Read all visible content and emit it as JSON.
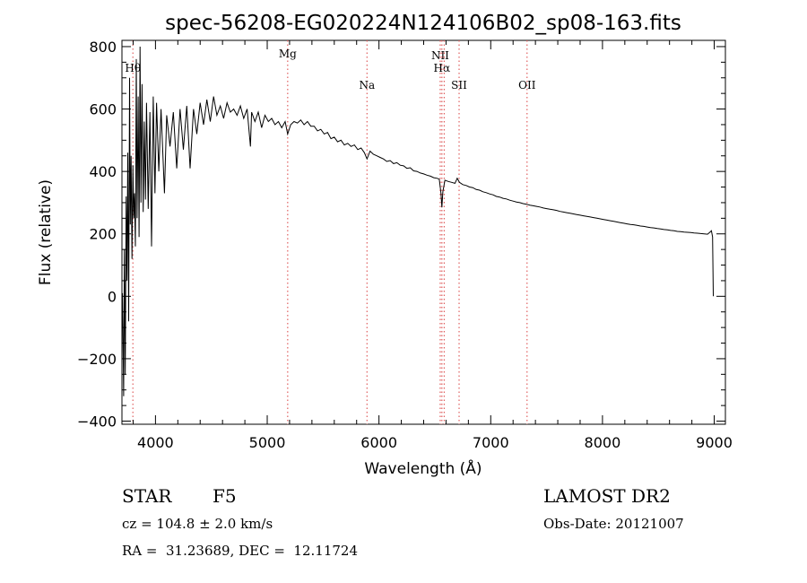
{
  "chart_data": {
    "type": "line",
    "title": "spec-56208-EG020224N124106B02_sp08-163.fits",
    "xlabel": "Wavelength (Å)",
    "ylabel": "Flux (relative)",
    "xlim": [
      3700,
      9100
    ],
    "ylim": [
      -410,
      820
    ],
    "x_ticks": [
      4000,
      5000,
      6000,
      7000,
      8000,
      9000
    ],
    "y_ticks": [
      -400,
      -200,
      0,
      200,
      400,
      600,
      800
    ],
    "grid": false,
    "series": [
      {
        "points": [
          [
            3705,
            10
          ],
          [
            3715,
            -320
          ],
          [
            3722,
            150
          ],
          [
            3730,
            -250
          ],
          [
            3738,
            320
          ],
          [
            3745,
            50
          ],
          [
            3752,
            460
          ],
          [
            3760,
            -80
          ],
          [
            3768,
            700
          ],
          [
            3775,
            230
          ],
          [
            3782,
            450
          ],
          [
            3790,
            120
          ],
          [
            3798,
            420
          ],
          [
            3805,
            250
          ],
          [
            3812,
            330
          ],
          [
            3820,
            160
          ],
          [
            3828,
            760
          ],
          [
            3836,
            250
          ],
          [
            3845,
            640
          ],
          [
            3853,
            190
          ],
          [
            3862,
            800
          ],
          [
            3870,
            300
          ],
          [
            3880,
            680
          ],
          [
            3890,
            270
          ],
          [
            3900,
            560
          ],
          [
            3910,
            310
          ],
          [
            3920,
            620
          ],
          [
            3935,
            280
          ],
          [
            3950,
            590
          ],
          [
            3965,
            160
          ],
          [
            3980,
            640
          ],
          [
            3995,
            330
          ],
          [
            4010,
            620
          ],
          [
            4030,
            400
          ],
          [
            4050,
            600
          ],
          [
            4080,
            330
          ],
          [
            4100,
            580
          ],
          [
            4130,
            480
          ],
          [
            4160,
            590
          ],
          [
            4190,
            410
          ],
          [
            4220,
            600
          ],
          [
            4250,
            470
          ],
          [
            4280,
            610
          ],
          [
            4310,
            410
          ],
          [
            4340,
            600
          ],
          [
            4370,
            520
          ],
          [
            4400,
            620
          ],
          [
            4430,
            550
          ],
          [
            4460,
            630
          ],
          [
            4490,
            560
          ],
          [
            4520,
            640
          ],
          [
            4550,
            580
          ],
          [
            4580,
            610
          ],
          [
            4610,
            570
          ],
          [
            4640,
            620
          ],
          [
            4670,
            590
          ],
          [
            4700,
            600
          ],
          [
            4730,
            580
          ],
          [
            4760,
            610
          ],
          [
            4790,
            570
          ],
          [
            4820,
            600
          ],
          [
            4850,
            480
          ],
          [
            4860,
            590
          ],
          [
            4890,
            560
          ],
          [
            4920,
            590
          ],
          [
            4950,
            540
          ],
          [
            4980,
            580
          ],
          [
            5010,
            560
          ],
          [
            5040,
            570
          ],
          [
            5070,
            550
          ],
          [
            5100,
            560
          ],
          [
            5130,
            540
          ],
          [
            5160,
            560
          ],
          [
            5183,
            520
          ],
          [
            5210,
            550
          ],
          [
            5240,
            560
          ],
          [
            5270,
            555
          ],
          [
            5300,
            565
          ],
          [
            5330,
            550
          ],
          [
            5360,
            560
          ],
          [
            5390,
            545
          ],
          [
            5420,
            545
          ],
          [
            5450,
            530
          ],
          [
            5480,
            535
          ],
          [
            5510,
            520
          ],
          [
            5540,
            525
          ],
          [
            5570,
            505
          ],
          [
            5600,
            510
          ],
          [
            5630,
            495
          ],
          [
            5660,
            500
          ],
          [
            5690,
            485
          ],
          [
            5720,
            490
          ],
          [
            5750,
            480
          ],
          [
            5780,
            485
          ],
          [
            5810,
            470
          ],
          [
            5840,
            475
          ],
          [
            5870,
            460
          ],
          [
            5893,
            440
          ],
          [
            5920,
            465
          ],
          [
            5950,
            455
          ],
          [
            5980,
            450
          ],
          [
            6010,
            445
          ],
          [
            6040,
            440
          ],
          [
            6070,
            432
          ],
          [
            6100,
            435
          ],
          [
            6130,
            425
          ],
          [
            6160,
            428
          ],
          [
            6190,
            420
          ],
          [
            6220,
            418
          ],
          [
            6250,
            410
          ],
          [
            6280,
            412
          ],
          [
            6310,
            402
          ],
          [
            6340,
            400
          ],
          [
            6370,
            395
          ],
          [
            6400,
            392
          ],
          [
            6430,
            388
          ],
          [
            6460,
            385
          ],
          [
            6490,
            380
          ],
          [
            6520,
            378
          ],
          [
            6540,
            375
          ],
          [
            6555,
            330
          ],
          [
            6563,
            285
          ],
          [
            6572,
            335
          ],
          [
            6590,
            372
          ],
          [
            6620,
            368
          ],
          [
            6650,
            365
          ],
          [
            6680,
            362
          ],
          [
            6700,
            378
          ],
          [
            6720,
            365
          ],
          [
            6750,
            358
          ],
          [
            6780,
            355
          ],
          [
            6810,
            350
          ],
          [
            6840,
            348
          ],
          [
            6870,
            342
          ],
          [
            6900,
            340
          ],
          [
            6930,
            335
          ],
          [
            6960,
            332
          ],
          [
            6990,
            328
          ],
          [
            7020,
            325
          ],
          [
            7050,
            320
          ],
          [
            7080,
            318
          ],
          [
            7110,
            314
          ],
          [
            7140,
            312
          ],
          [
            7170,
            308
          ],
          [
            7200,
            305
          ],
          [
            7230,
            302
          ],
          [
            7260,
            300
          ],
          [
            7290,
            297
          ],
          [
            7320,
            295
          ],
          [
            7350,
            292
          ],
          [
            7380,
            290
          ],
          [
            7410,
            288
          ],
          [
            7440,
            286
          ],
          [
            7470,
            283
          ],
          [
            7500,
            281
          ],
          [
            7530,
            279
          ],
          [
            7560,
            277
          ],
          [
            7590,
            275
          ],
          [
            7620,
            272
          ],
          [
            7650,
            270
          ],
          [
            7680,
            268
          ],
          [
            7710,
            266
          ],
          [
            7740,
            264
          ],
          [
            7770,
            262
          ],
          [
            7800,
            260
          ],
          [
            7830,
            258
          ],
          [
            7860,
            256
          ],
          [
            7890,
            254
          ],
          [
            7920,
            252
          ],
          [
            7950,
            250
          ],
          [
            7980,
            248
          ],
          [
            8010,
            246
          ],
          [
            8040,
            244
          ],
          [
            8070,
            242
          ],
          [
            8100,
            240
          ],
          [
            8130,
            238
          ],
          [
            8160,
            236
          ],
          [
            8190,
            234
          ],
          [
            8220,
            232
          ],
          [
            8250,
            230
          ],
          [
            8280,
            229
          ],
          [
            8310,
            227
          ],
          [
            8340,
            225
          ],
          [
            8370,
            224
          ],
          [
            8400,
            222
          ],
          [
            8430,
            220
          ],
          [
            8460,
            219
          ],
          [
            8490,
            217
          ],
          [
            8520,
            216
          ],
          [
            8550,
            214
          ],
          [
            8580,
            213
          ],
          [
            8610,
            211
          ],
          [
            8640,
            210
          ],
          [
            8670,
            208
          ],
          [
            8700,
            207
          ],
          [
            8730,
            206
          ],
          [
            8760,
            205
          ],
          [
            8790,
            204
          ],
          [
            8820,
            203
          ],
          [
            8850,
            202
          ],
          [
            8880,
            201
          ],
          [
            8910,
            200
          ],
          [
            8940,
            199
          ],
          [
            8960,
            205
          ],
          [
            8975,
            210
          ],
          [
            8985,
            190
          ],
          [
            8992,
            0
          ]
        ]
      }
    ],
    "lines": [
      {
        "label": "Hθ",
        "x": 3798,
        "label_y": 720
      },
      {
        "label": "Mg",
        "x": 5183,
        "label_y": 765
      },
      {
        "label": "Na",
        "x": 5893,
        "label_y": 665
      },
      {
        "label": "NII",
        "x": 6548,
        "label_y": 760
      },
      {
        "label": "Hα",
        "x": 6563,
        "label_y": 720
      },
      {
        "label": "NII",
        "x": 6584,
        "label_y": null
      },
      {
        "label": "SII",
        "x": 6717,
        "label_y": 665
      },
      {
        "label": "OII",
        "x": 7325,
        "label_y": 665
      }
    ],
    "line_color": "#e06060"
  },
  "info": {
    "object_class": "STAR",
    "subclass": "F5",
    "survey": "LAMOST DR2",
    "redshift": "cz = 104.8 ± 2.0 km/s",
    "obs_date": "Obs-Date: 20121007",
    "coords": "RA =  31.23689, DEC =  12.11724"
  }
}
